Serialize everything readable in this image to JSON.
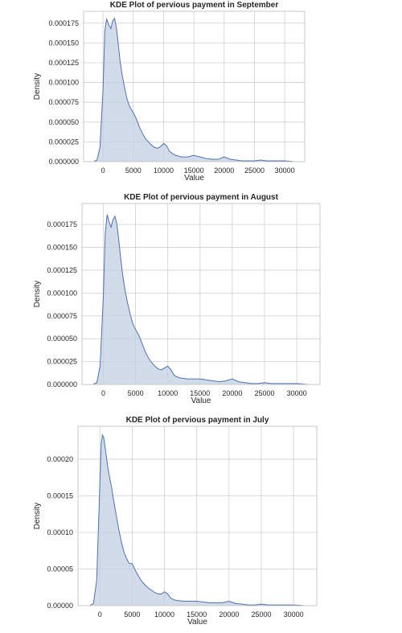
{
  "style": {
    "fill_color": "#c3cfe3",
    "line_color": "#4c72b0",
    "grid_color": "#cfcfcf",
    "frame_color": "#c9c9c9"
  },
  "chart_data": [
    {
      "type": "area",
      "title": "KDE Plot of pervious payment in September",
      "xlabel": "Value",
      "ylabel": "Density",
      "xlim": [
        -3200,
        33300
      ],
      "ylim": [
        0,
        0.00019
      ],
      "xticks": [
        0,
        5000,
        10000,
        15000,
        20000,
        25000,
        30000
      ],
      "yticks": [
        0,
        2.5e-05,
        5e-05,
        7.5e-05,
        0.0001,
        0.000125,
        0.00015,
        0.000175
      ],
      "ytick_labels": [
        "0.000000",
        "0.000025",
        "0.000050",
        "0.000075",
        "0.000100",
        "0.000125",
        "0.000150",
        "0.000175"
      ],
      "grid": true,
      "x": [
        -1600,
        -1000,
        -500,
        0,
        300,
        600,
        1000,
        1300,
        1600,
        1900,
        2200,
        2500,
        2800,
        3200,
        3600,
        4000,
        4500,
        5000,
        5500,
        6000,
        6500,
        7000,
        7500,
        8000,
        8500,
        9000,
        9500,
        10000,
        10500,
        11000,
        11500,
        12000,
        13000,
        14000,
        15000,
        16000,
        17000,
        18000,
        19000,
        20000,
        21000,
        22000,
        23000,
        24000,
        25000,
        26000,
        27000,
        28000,
        29000,
        30000,
        31000,
        31700
      ],
      "y": [
        0,
        2e-06,
        1.8e-05,
        9e-05,
        0.000165,
        0.00018,
        0.000172,
        0.000168,
        0.000178,
        0.000181,
        0.00017,
        0.00015,
        0.000128,
        0.000108,
        9.2e-05,
        7.8e-05,
        6.8e-05,
        6.2e-05,
        5.4e-05,
        4.4e-05,
        3.6e-05,
        2.9e-05,
        2.5e-05,
        2.1e-05,
        1.8e-05,
        1.7e-05,
        1.9e-05,
        2.3e-05,
        2e-05,
        1.3e-05,
        1e-05,
        8e-06,
        6e-06,
        6e-06,
        8e-06,
        6e-06,
        4e-06,
        3e-06,
        3e-06,
        6e-06,
        3e-06,
        2e-06,
        1e-06,
        1e-06,
        1e-06,
        2e-06,
        1e-06,
        1e-06,
        1e-06,
        1e-06,
        5e-07,
        0
      ]
    },
    {
      "type": "area",
      "title": "KDE Plot of pervious payment in August",
      "xlabel": "Value",
      "ylabel": "Density",
      "xlim": [
        -3300,
        33600
      ],
      "ylim": [
        0,
        0.000198
      ],
      "xticks": [
        0,
        5000,
        10000,
        15000,
        20000,
        25000,
        30000
      ],
      "yticks": [
        0,
        2.5e-05,
        5e-05,
        7.5e-05,
        0.0001,
        0.000125,
        0.00015,
        0.000175
      ],
      "ytick_labels": [
        "0.000000",
        "0.000025",
        "0.000050",
        "0.000075",
        "0.000100",
        "0.000125",
        "0.000150",
        "0.000175"
      ],
      "grid": true,
      "x": [
        -1600,
        -1000,
        -500,
        0,
        300,
        600,
        900,
        1200,
        1500,
        1800,
        2100,
        2400,
        2700,
        3000,
        3400,
        3800,
        4200,
        4600,
        5000,
        5500,
        6000,
        6500,
        7000,
        7500,
        8000,
        8500,
        9000,
        9500,
        10000,
        10500,
        11000,
        11500,
        12000,
        13000,
        14000,
        15000,
        16000,
        17000,
        18000,
        19000,
        20000,
        21000,
        22000,
        23000,
        24000,
        25000,
        26000,
        27000,
        28000,
        29000,
        30000,
        31000,
        31800
      ],
      "y": [
        0,
        2e-06,
        2e-05,
        9.5e-05,
        0.000165,
        0.000186,
        0.000178,
        0.000172,
        0.00018,
        0.000184,
        0.000176,
        0.000158,
        0.000138,
        0.00012,
        0.000102,
        8.8e-05,
        7.6e-05,
        6.6e-05,
        6e-05,
        5.4e-05,
        4.5e-05,
        3.6e-05,
        2.9e-05,
        2.4e-05,
        2e-05,
        1.7e-05,
        1.6e-05,
        1.8e-05,
        2e-05,
        1.6e-05,
        1e-05,
        8e-06,
        7e-06,
        6e-06,
        6e-06,
        6e-06,
        5e-06,
        4e-06,
        3e-06,
        4e-06,
        6e-06,
        3e-06,
        2e-06,
        1e-06,
        1e-06,
        2e-06,
        1e-06,
        1e-06,
        1e-06,
        1e-06,
        1e-06,
        5e-07,
        0
      ]
    },
    {
      "type": "area",
      "title": "KDE Plot of pervious payment in July",
      "xlabel": "Value",
      "ylabel": "Density",
      "xlim": [
        -3400,
        33600
      ],
      "ylim": [
        0,
        0.000245
      ],
      "xticks": [
        0,
        5000,
        10000,
        15000,
        20000,
        25000,
        30000
      ],
      "yticks": [
        0,
        5e-05,
        0.0001,
        0.00015,
        0.0002
      ],
      "ytick_labels": [
        "0.00000",
        "0.00005",
        "0.00010",
        "0.00015",
        "0.00020"
      ],
      "grid": true,
      "x": [
        -1600,
        -1000,
        -500,
        0,
        200,
        400,
        600,
        900,
        1200,
        1500,
        1800,
        2100,
        2500,
        2900,
        3300,
        3700,
        4100,
        4500,
        5000,
        5500,
        6000,
        6500,
        7000,
        7500,
        8000,
        8500,
        9000,
        9500,
        10000,
        10500,
        11000,
        11500,
        12000,
        13000,
        14000,
        15000,
        16000,
        17000,
        18000,
        19000,
        20000,
        21000,
        22000,
        23000,
        24000,
        25000,
        26000,
        27000,
        28000,
        29000,
        30000,
        31000,
        31700
      ],
      "y": [
        0,
        3e-06,
        3.5e-05,
        0.00017,
        0.000222,
        0.000233,
        0.000229,
        0.00021,
        0.00019,
        0.000175,
        0.000162,
        0.000145,
        0.000125,
        0.000105,
        8.8e-05,
        7.4e-05,
        6.5e-05,
        5.8e-05,
        5.7e-05,
        4.8e-05,
        4e-05,
        3.3e-05,
        2.8e-05,
        2.4e-05,
        2.1e-05,
        1.8e-05,
        1.6e-05,
        1.6e-05,
        1.9e-05,
        1.6e-05,
        1e-05,
        8e-06,
        7e-06,
        6e-06,
        6e-06,
        6e-06,
        5e-06,
        4e-06,
        4e-06,
        4e-06,
        6e-06,
        3e-06,
        2e-06,
        1e-06,
        1e-06,
        2e-06,
        1e-06,
        1e-06,
        1e-06,
        1e-06,
        1e-06,
        5e-07,
        0
      ]
    }
  ]
}
